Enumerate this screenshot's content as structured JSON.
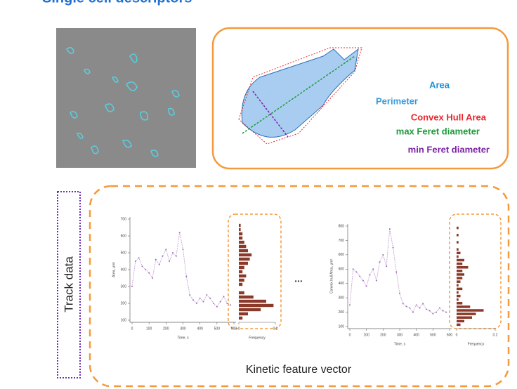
{
  "title": "Single cell descriptors",
  "descriptors": [
    {
      "label": "Area",
      "color": "#1f8fd6"
    },
    {
      "label": "Perimeter",
      "color": "#3a9ad9"
    },
    {
      "label": "Convex Hull Area",
      "color": "#e8262b"
    },
    {
      "label": "max Feret diameter",
      "color": "#1f9a3a"
    },
    {
      "label": "min Feret diameter",
      "color": "#7a23a6"
    }
  ],
  "track_label": "Track data",
  "ellipsis": "...",
  "feature_label": "Kinetic feature vector",
  "plots": [
    {
      "ylabel": "Area, μm²",
      "xlabel": "Time, s",
      "hist_label": "Frequency",
      "xlim": [
        0,
        600
      ],
      "xticks": [
        0,
        100,
        200,
        300,
        400,
        500,
        600
      ],
      "ylim": [
        100,
        700
      ],
      "yticks": [
        100,
        200,
        300,
        400,
        500,
        600,
        700
      ],
      "x": [
        0,
        20,
        40,
        60,
        80,
        100,
        120,
        140,
        160,
        180,
        200,
        220,
        240,
        260,
        280,
        300,
        320,
        340,
        360,
        380,
        400,
        420,
        440,
        460,
        480,
        500,
        520,
        540,
        560,
        580
      ],
      "values": [
        300,
        450,
        470,
        420,
        400,
        380,
        350,
        460,
        430,
        480,
        520,
        450,
        500,
        480,
        620,
        520,
        360,
        250,
        220,
        200,
        230,
        210,
        250,
        230,
        200,
        180,
        210,
        240,
        200,
        190
      ],
      "hist_bins": [
        100,
        125,
        150,
        175,
        200,
        225,
        250,
        275,
        300,
        325,
        350,
        375,
        400,
        425,
        450,
        475,
        500,
        525,
        550,
        575,
        600,
        625,
        650,
        675,
        700
      ],
      "hist_counts": [
        0.02,
        0.05,
        0.12,
        0.19,
        0.15,
        0.08,
        0.03,
        0,
        0.02,
        0.03,
        0.04,
        0.02,
        0.03,
        0.05,
        0.06,
        0.07,
        0.05,
        0.04,
        0.03,
        0.02,
        0.02,
        0.01,
        0.01,
        0
      ],
      "hist_xlim": [
        0,
        0.2
      ],
      "hist_xticks": [
        0,
        0.2
      ]
    },
    {
      "ylabel": "Convex hull Area, μm²",
      "xlabel": "Time, s",
      "hist_label": "Frequency",
      "xlim": [
        0,
        600
      ],
      "xticks": [
        0,
        100,
        200,
        300,
        400,
        500,
        600
      ],
      "ylim": [
        100,
        800
      ],
      "yticks": [
        100,
        200,
        300,
        400,
        500,
        600,
        700,
        800
      ],
      "x": [
        0,
        20,
        40,
        60,
        80,
        100,
        120,
        140,
        160,
        180,
        200,
        220,
        240,
        260,
        280,
        300,
        320,
        340,
        360,
        380,
        400,
        420,
        440,
        460,
        480,
        500,
        520,
        540,
        560,
        580
      ],
      "values": [
        250,
        500,
        480,
        450,
        420,
        380,
        460,
        500,
        420,
        550,
        600,
        520,
        780,
        650,
        480,
        330,
        260,
        240,
        230,
        200,
        250,
        230,
        260,
        220,
        210,
        190,
        200,
        230,
        210,
        200
      ],
      "hist_bins": [
        100,
        125,
        150,
        175,
        200,
        225,
        250,
        275,
        300,
        325,
        350,
        375,
        400,
        425,
        450,
        475,
        500,
        525,
        550,
        575,
        600,
        625,
        650,
        675,
        700,
        725,
        750,
        775,
        800
      ],
      "hist_counts": [
        0.02,
        0.04,
        0.08,
        0.1,
        0.14,
        0.07,
        0.03,
        0.01,
        0.02,
        0.01,
        0.03,
        0.01,
        0.02,
        0.03,
        0.04,
        0.03,
        0.06,
        0.03,
        0.04,
        0.01,
        0.02,
        0.01,
        0,
        0.01,
        0,
        0.01,
        0,
        0.01
      ],
      "hist_xlim": [
        0,
        0.2
      ],
      "hist_xticks": [
        0,
        0.2
      ]
    }
  ]
}
